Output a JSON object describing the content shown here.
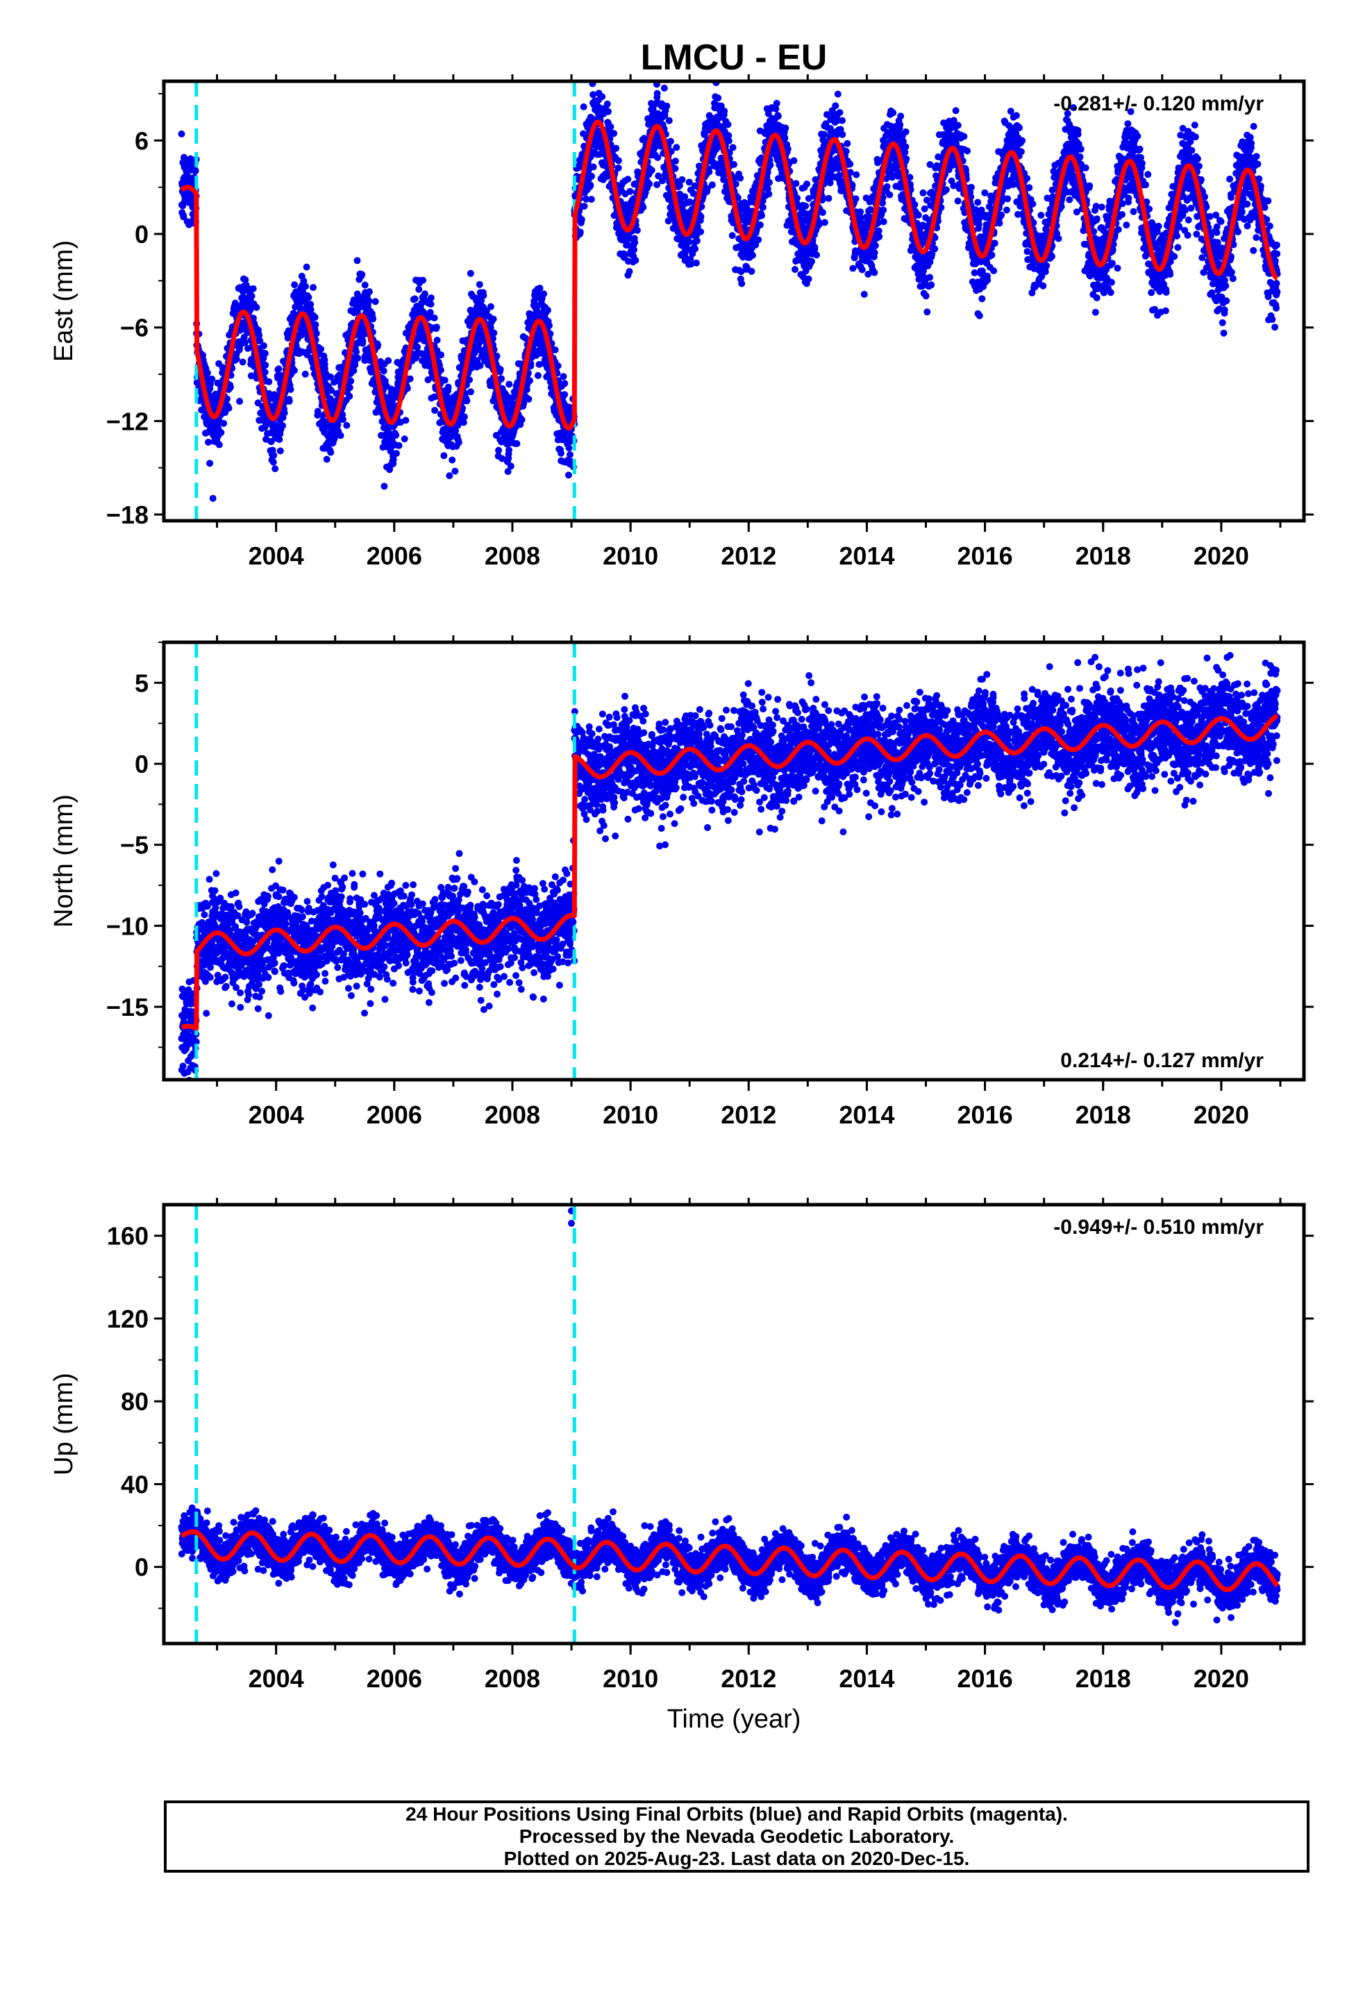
{
  "figure": {
    "title": "LMCU - EU",
    "xlabel": "Time (year)",
    "footer": [
      "24 Hour Positions Using Final Orbits (blue) and Rapid Orbits (magenta).",
      "Processed by the Nevada Geodetic Laboratory.",
      "Plotted on 2025-Aug-23. Last data on 2020-Dec-15."
    ],
    "colors": {
      "data": "#0000ee",
      "model": "#ff0000",
      "breaks": "#00e5ee"
    }
  },
  "chart_data": [
    {
      "type": "scatter",
      "name": "east",
      "ylabel": "East (mm)",
      "rate_label": "-0.281+/- 0.120 mm/yr",
      "rate_position": "top-right",
      "xlim": [
        2002.1,
        2021.4
      ],
      "ylim": [
        -18.4,
        9.8
      ],
      "yticks": [
        6,
        0,
        -6,
        -12,
        -18
      ],
      "xticks": [
        2004,
        2006,
        2008,
        2010,
        2012,
        2014,
        2016,
        2018,
        2020
      ],
      "breaks": [
        2002.65,
        2009.05
      ],
      "data_range": [
        2002.4,
        2020.95
      ],
      "segments": [
        {
          "start": 2002.4,
          "end": 2002.65,
          "offset": 2.0,
          "rate": 0,
          "amplitude": 1.0,
          "phase": 2002.5
        },
        {
          "start": 2002.65,
          "end": 2009.05,
          "offset": -8.3,
          "rate": -0.12,
          "amplitude": 3.4,
          "phase": 2003.45
        },
        {
          "start": 2009.05,
          "end": 2020.95,
          "offset": 3.9,
          "rate": -0.28,
          "amplitude": 3.4,
          "phase": 2009.45
        }
      ],
      "scatter_sigma": 1.3
    },
    {
      "type": "scatter",
      "name": "north",
      "ylabel": "North (mm)",
      "rate_label": "0.214+/- 0.127 mm/yr",
      "rate_position": "bottom-right",
      "xlim": [
        2002.1,
        2021.4
      ],
      "ylim": [
        -19.5,
        7.5
      ],
      "yticks": [
        5,
        0,
        -5,
        -10,
        -15
      ],
      "xticks": [
        2004,
        2006,
        2008,
        2010,
        2012,
        2014,
        2016,
        2018,
        2020
      ],
      "breaks": [
        2002.65,
        2009.05
      ],
      "data_range": [
        2002.4,
        2020.95
      ],
      "segments": [
        {
          "start": 2002.4,
          "end": 2002.65,
          "offset": -16.5,
          "rate": 0,
          "amplitude": 0.3,
          "phase": 2002.5
        },
        {
          "start": 2002.65,
          "end": 2009.05,
          "offset": -11.2,
          "rate": 0.18,
          "amplitude": 0.7,
          "phase": 2003.0
        },
        {
          "start": 2009.05,
          "end": 2020.95,
          "offset": -0.2,
          "rate": 0.21,
          "amplitude": 0.7,
          "phase": 2009.0
        }
      ],
      "scatter_sigma": 1.4
    },
    {
      "type": "scatter",
      "name": "up",
      "ylabel": "Up (mm)",
      "rate_label": "-0.949+/- 0.510 mm/yr",
      "rate_position": "top-right",
      "xlim": [
        2002.1,
        2021.4
      ],
      "ylim": [
        -37,
        175
      ],
      "yticks": [
        160,
        120,
        80,
        40,
        0
      ],
      "xticks": [
        2004,
        2006,
        2008,
        2010,
        2012,
        2014,
        2016,
        2018,
        2020
      ],
      "breaks": [
        2002.65,
        2009.05
      ],
      "data_range": [
        2002.4,
        2020.95
      ],
      "segments": [
        {
          "start": 2002.4,
          "end": 2002.65,
          "offset": 14,
          "rate": 0,
          "amplitude": 3,
          "phase": 2002.6
        },
        {
          "start": 2002.65,
          "end": 2009.05,
          "offset": 10.5,
          "rate": -0.6,
          "amplitude": 6.5,
          "phase": 2003.6
        },
        {
          "start": 2009.05,
          "end": 2020.95,
          "offset": 6,
          "rate": -0.95,
          "amplitude": 6.5,
          "phase": 2009.6
        }
      ],
      "outliers": [
        [
          2009.0,
          172
        ],
        [
          2009.0,
          166
        ]
      ],
      "scatter_sigma": 5.0
    }
  ]
}
